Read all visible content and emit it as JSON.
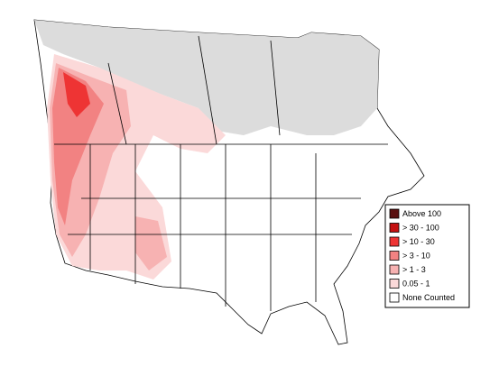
{
  "legend": {
    "items": [
      {
        "label": "Above 100",
        "color": "#5a0f0f"
      },
      {
        "label": "> 30 - 100",
        "color": "#c41010"
      },
      {
        "label": "> 10 - 30",
        "color": "#ee3434"
      },
      {
        "label": "> 3 - 10",
        "color": "#f28282"
      },
      {
        "label": "> 1 - 3",
        "color": "#f7b2b2"
      },
      {
        "label": "0.05 - 1",
        "color": "#fbd9d9"
      },
      {
        "label": "None Counted",
        "color": "#ffffff"
      }
    ]
  },
  "range_color": "#dcdcdc"
}
